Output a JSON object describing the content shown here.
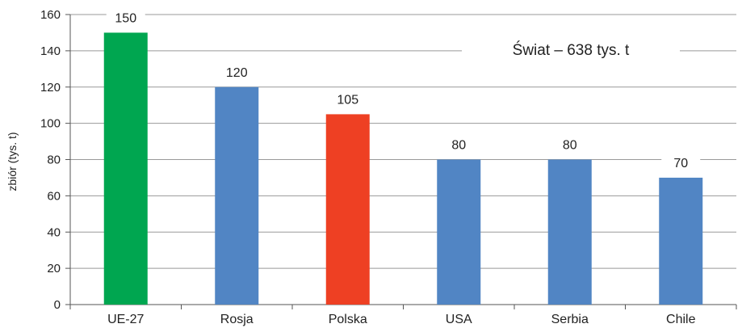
{
  "chart_data": {
    "type": "bar",
    "title": "",
    "xlabel": "",
    "ylabel": "zbiór (tys. t)",
    "ylim": [
      0,
      160
    ],
    "yticks": [
      0,
      20,
      40,
      60,
      80,
      100,
      120,
      140,
      160
    ],
    "grid": true,
    "legend": "none",
    "categories": [
      "UE-27",
      "Rosja",
      "Polska",
      "USA",
      "Serbia",
      "Chile"
    ],
    "values": [
      150,
      120,
      105,
      80,
      80,
      70
    ],
    "data_labels": [
      "150",
      "120",
      "105",
      "80",
      "80",
      "70"
    ],
    "bar_colors": [
      "#00a650",
      "#5185c4",
      "#ee4023",
      "#5185c4",
      "#5185c4",
      "#5185c4"
    ],
    "annotation": "Świat – 638 tys. t",
    "colors": {
      "grid": "#999999",
      "axis": "#555555"
    }
  }
}
